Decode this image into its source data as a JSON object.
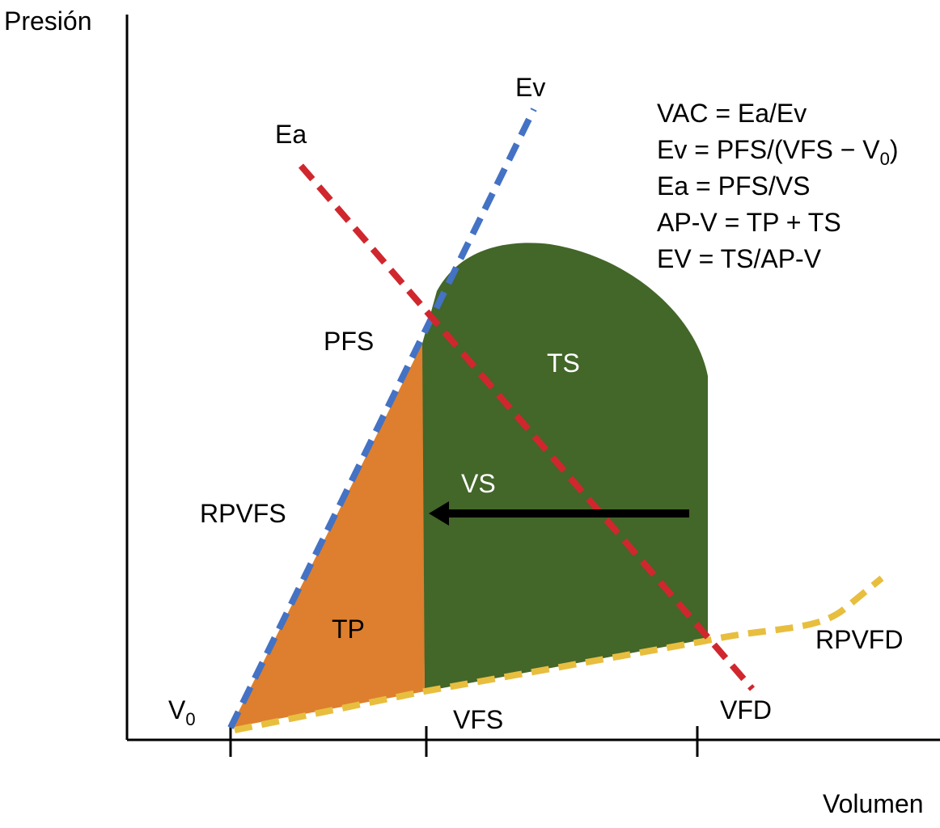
{
  "axes": {
    "y_label": "Presión",
    "x_label": "Volumen"
  },
  "lines": {
    "ev": "Ev",
    "ea": "Ea",
    "rpvfs": "RPVFS",
    "rpvfd": "RPVFD"
  },
  "areas": {
    "ts": "TS",
    "tp": "TP"
  },
  "points": {
    "pfs": "PFS",
    "v0_main": "V",
    "v0_sub": "0",
    "vfs": "VFS",
    "vfd": "VFD"
  },
  "arrow_label": "VS",
  "formulas": {
    "f1": "VAC = Ea/Ev",
    "f2_main": "Ev = PFS/(VFS − V",
    "f2_sub": "0",
    "f2_end": ")",
    "f3": "Ea = PFS/VS",
    "f4": "AP-V = TP + TS",
    "f5": "EV = TS/AP-V"
  },
  "colors": {
    "ts": "#436629",
    "tp": "#DD7F2E",
    "ev": "#4472C4",
    "ea": "#D0272E",
    "rpvfd": "#E8BE3F"
  }
}
